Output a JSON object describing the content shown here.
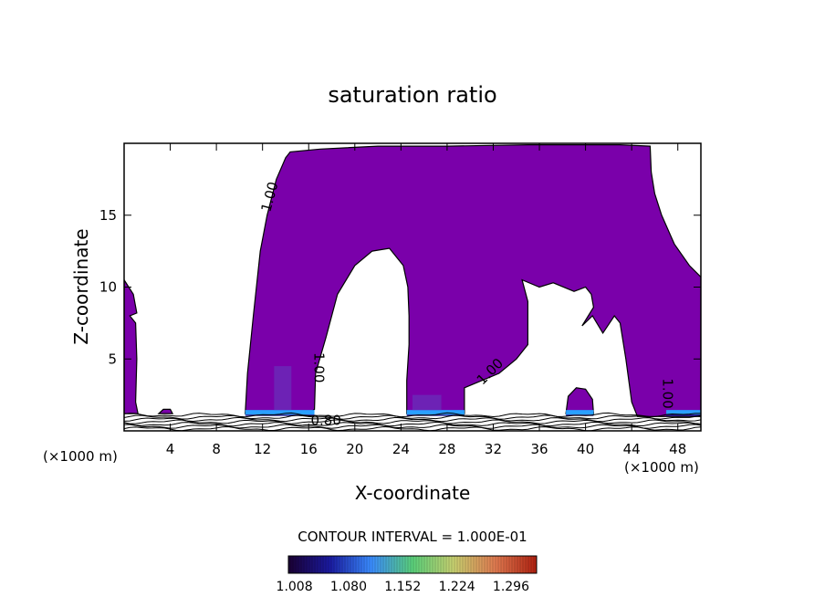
{
  "chart_data": {
    "type": "contour",
    "title": "saturation ratio",
    "xlabel": "X-coordinate",
    "ylabel": "Z-coordinate",
    "x_unit_left": "(×1000 m)",
    "x_unit_right": "(×1000 m)",
    "xlim": [
      0,
      50
    ],
    "ylim": [
      0,
      20
    ],
    "x_ticks": [
      4,
      8,
      12,
      16,
      20,
      24,
      28,
      32,
      36,
      40,
      44,
      48
    ],
    "y_ticks": [
      5,
      10,
      15
    ],
    "contour_interval_label": "CONTOUR INTERVAL = 1.000E-01",
    "contour_labels": [
      {
        "text": "1.00",
        "x": 13.0,
        "z": 16.2,
        "rot": -75
      },
      {
        "text": "1.00",
        "x": 16.5,
        "z": 4.4,
        "rot": 90
      },
      {
        "text": "1.00",
        "x": 32.0,
        "z": 3.9,
        "rot": -45
      },
      {
        "text": "1.00",
        "x": 46.7,
        "z": 2.6,
        "rot": 90
      },
      {
        "text": "0.80",
        "x": 17.5,
        "z": 0.4,
        "rot": 0
      }
    ],
    "regions": [
      {
        "name": "S > 1.0 (main)",
        "color": "#7a00aa",
        "outline": [
          [
            10.5,
            1.2
          ],
          [
            10.7,
            4.0
          ],
          [
            11.2,
            8.0
          ],
          [
            11.8,
            12.5
          ],
          [
            12.4,
            15.0
          ],
          [
            13.2,
            17.5
          ],
          [
            14.0,
            19.0
          ],
          [
            14.4,
            19.4
          ],
          [
            17.0,
            19.6
          ],
          [
            22.0,
            19.8
          ],
          [
            28.0,
            19.8
          ],
          [
            35.0,
            19.9
          ],
          [
            43.0,
            19.9
          ],
          [
            45.6,
            19.8
          ],
          [
            45.7,
            18.0
          ],
          [
            46.0,
            16.5
          ],
          [
            46.6,
            15.0
          ],
          [
            47.7,
            13.0
          ],
          [
            49.0,
            11.5
          ],
          [
            50.0,
            10.7
          ],
          [
            50.0,
            1.0
          ],
          [
            44.5,
            1.0
          ],
          [
            44.0,
            2.0
          ],
          [
            43.5,
            5.0
          ],
          [
            43.0,
            7.5
          ],
          [
            42.5,
            8.0
          ],
          [
            41.5,
            6.8
          ],
          [
            40.6,
            8.0
          ],
          [
            39.7,
            7.3
          ],
          [
            40.7,
            8.6
          ],
          [
            40.5,
            9.5
          ],
          [
            40.0,
            10.0
          ],
          [
            39.0,
            9.7
          ],
          [
            37.2,
            10.3
          ],
          [
            36.0,
            10.0
          ],
          [
            34.5,
            10.5
          ],
          [
            35.0,
            9.0
          ],
          [
            35.0,
            6.0
          ],
          [
            34.0,
            5.0
          ],
          [
            32.5,
            4.0
          ],
          [
            31.0,
            3.5
          ],
          [
            29.5,
            3.0
          ],
          [
            29.5,
            1.2
          ],
          [
            27.0,
            1.2
          ],
          [
            24.5,
            1.2
          ],
          [
            24.5,
            3.5
          ],
          [
            24.7,
            6.0
          ],
          [
            24.7,
            8.0
          ],
          [
            24.6,
            10.0
          ],
          [
            24.2,
            11.5
          ],
          [
            23.0,
            12.7
          ],
          [
            21.5,
            12.5
          ],
          [
            20.0,
            11.5
          ],
          [
            18.5,
            9.5
          ],
          [
            17.5,
            6.5
          ],
          [
            16.6,
            4.0
          ],
          [
            16.5,
            1.5
          ],
          [
            16.0,
            1.2
          ]
        ]
      },
      {
        "name": "S > 1.0 (left edge)",
        "color": "#7a00aa",
        "outline": [
          [
            0,
            10.5
          ],
          [
            0.8,
            9.5
          ],
          [
            1.1,
            8.2
          ],
          [
            0.5,
            8.0
          ],
          [
            1.0,
            7.5
          ],
          [
            1.1,
            5.0
          ],
          [
            1.0,
            2.0
          ],
          [
            1.2,
            1.2
          ],
          [
            0,
            1.2
          ]
        ]
      },
      {
        "name": "S > 1.0 (right blob)",
        "color": "#7a00aa",
        "outline": [
          [
            38.3,
            1.2
          ],
          [
            38.5,
            2.4
          ],
          [
            39.2,
            3.0
          ],
          [
            40.0,
            2.9
          ],
          [
            40.6,
            2.2
          ],
          [
            40.7,
            1.2
          ]
        ]
      },
      {
        "name": "S > 1.0 (small patches)",
        "color": "#7a00aa",
        "outline": [
          [
            3.0,
            1.2
          ],
          [
            3.4,
            1.5
          ],
          [
            4.0,
            1.5
          ],
          [
            4.2,
            1.2
          ]
        ]
      }
    ],
    "colorbar": {
      "ticks": [
        "1.008",
        "1.080",
        "1.152",
        "1.224",
        "1.296"
      ],
      "range": [
        1.0,
        1.33
      ],
      "colors": [
        "#1a0033",
        "#1a1aa0",
        "#3a8cff",
        "#5ad07a",
        "#c8d070",
        "#e07a50",
        "#b02010"
      ]
    }
  }
}
